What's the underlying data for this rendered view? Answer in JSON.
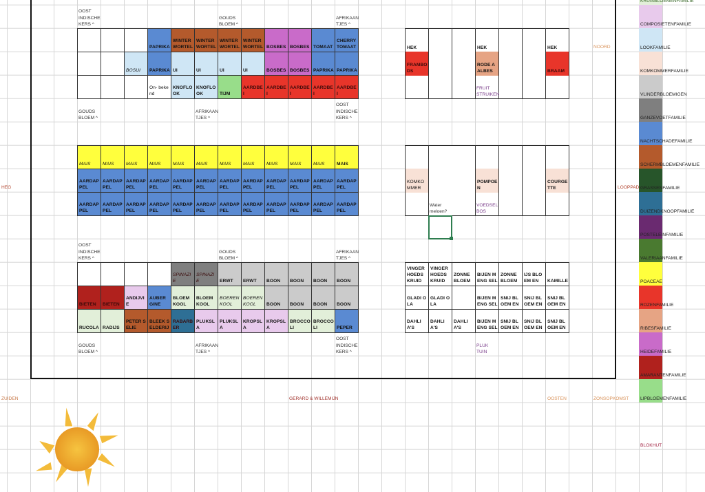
{
  "families": {
    "kruis": {
      "label": "KRUISBLOEMENFAMILIE",
      "color": "#e2efd9"
    },
    "comp": {
      "label": "COMPOSIETENFAMILIE",
      "color": "#e8caec"
    },
    "look": {
      "label": "LOOKFAMILIE",
      "color": "#cfe6f5"
    },
    "komk": {
      "label": "KOMKOMMERFAMILIE",
      "color": "#f8e1d6"
    },
    "vlin": {
      "label": "VLINDERBLOEMIGEN",
      "color": "#cbcbcb"
    },
    "ganz": {
      "label": "GANZEVOETFAMILIE",
      "color": "#7f7f7f"
    },
    "nacht": {
      "label": "NACHTSCHADEFAMILIE",
      "color": "#5a8ad2"
    },
    "scherm": {
      "label": "SCHERMBLOEMENFAMILIE",
      "color": "#b45a2c"
    },
    "gras": {
      "label": "GRASSENFAMILIE",
      "color": "#27552a"
    },
    "duiz": {
      "label": "DUIZENDKNOOPFAMILIE",
      "color": "#2e6f95"
    },
    "post": {
      "label": "POSTELEINFAMILIE",
      "color": "#6a2a70"
    },
    "val": {
      "label": "VALERIAANFAMILIE",
      "color": "#4a7a30"
    },
    "poa": {
      "label": "POACEAE",
      "color": "#ffff3d"
    },
    "roz": {
      "label": "ROZENFAMILIE",
      "color": "#e8352a"
    },
    "ribes": {
      "label": "RIBESFAMILIE",
      "color": "#e6a484"
    },
    "heide": {
      "label": "HEIDEFAMILIE",
      "color": "#c96bc9"
    },
    "amar": {
      "label": "AMARANTENFAMILIE",
      "color": "#b0211d"
    },
    "lip": {
      "label": "LIPBLOEMENFAMILIE",
      "color": "#98dd8a"
    }
  },
  "legend_order": [
    "kruis",
    "comp",
    "look",
    "komk",
    "vlin",
    "ganz",
    "nacht",
    "scherm",
    "gras",
    "duiz",
    "post",
    "val",
    "poa",
    "roz",
    "ribes",
    "heide",
    "amar",
    "lip"
  ],
  "plots": [
    {
      "name": "bed-top-left",
      "rows": [
        [
          [
            "",
            ""
          ],
          [
            "",
            ""
          ],
          [
            "",
            ""
          ],
          [
            "PAPRIKA",
            "nacht"
          ],
          [
            "WINTER WORTEL",
            "scherm"
          ],
          [
            "WINTER WORTEL",
            "scherm"
          ],
          [
            "WINTER WORTEL",
            "scherm"
          ],
          [
            "WINTER WORTEL",
            "scherm"
          ],
          [
            "BOSBES",
            "heide"
          ],
          [
            "BOSBES",
            "heide"
          ],
          [
            "TOMAAT",
            "nacht"
          ],
          [
            "CHERRY TOMAAT",
            "nacht"
          ]
        ],
        [
          [
            "",
            ""
          ],
          [
            "",
            ""
          ],
          [
            "BOSUI",
            "look",
            "i"
          ],
          [
            "PAPRIKA",
            "nacht"
          ],
          [
            "UI",
            "look"
          ],
          [
            "UI",
            "look"
          ],
          [
            "UI",
            "look"
          ],
          [
            "UI",
            "look"
          ],
          [
            "BOSBES",
            "heide"
          ],
          [
            "BOSBES",
            "heide"
          ],
          [
            "PAPRIKA",
            "nacht"
          ],
          [
            "PAPRIKA",
            "nacht"
          ]
        ],
        [
          [
            "",
            ""
          ],
          [
            "",
            ""
          ],
          [
            "",
            ""
          ],
          [
            "On- bekend",
            "",
            "n"
          ],
          [
            "KNOFLOOK",
            "look"
          ],
          [
            "KNOFLOOK",
            "look"
          ],
          [
            "TIJM",
            "lip"
          ],
          [
            "AARDBEI",
            "roz"
          ],
          [
            "AARDBEI",
            "roz"
          ],
          [
            "AARDBEI",
            "roz"
          ],
          [
            "AARDBEI",
            "roz"
          ],
          [
            "AARDBEI",
            "roz"
          ]
        ]
      ]
    },
    {
      "name": "bed-middle-left",
      "rows": [
        [
          [
            "MAIS",
            "poa",
            "i"
          ],
          [
            "MAIS",
            "poa",
            "i"
          ],
          [
            "MAIS",
            "poa",
            "i"
          ],
          [
            "MAIS",
            "poa",
            "i"
          ],
          [
            "MAIS",
            "poa",
            "i"
          ],
          [
            "MAIS",
            "poa",
            "i"
          ],
          [
            "MAIS",
            "poa",
            "i"
          ],
          [
            "MAIS",
            "poa",
            "i"
          ],
          [
            "MAIS",
            "poa",
            "i"
          ],
          [
            "MAIS",
            "poa",
            "i"
          ],
          [
            "MAIS",
            "poa",
            "i"
          ],
          [
            "MAIS",
            "poa"
          ]
        ],
        [
          [
            "AARDAPPEL",
            "nacht"
          ],
          [
            "AARDAPPEL",
            "nacht"
          ],
          [
            "AARDAPPEL",
            "nacht"
          ],
          [
            "AARDAPPEL",
            "nacht"
          ],
          [
            "AARDAPPEL",
            "nacht"
          ],
          [
            "AARDAPPEL",
            "nacht"
          ],
          [
            "AARDAPPEL",
            "nacht"
          ],
          [
            "AARDAPPEL",
            "nacht"
          ],
          [
            "AARDAPPEL",
            "nacht"
          ],
          [
            "AARDAPPEL",
            "nacht"
          ],
          [
            "AARDAPPEL",
            "nacht"
          ],
          [
            "AARDAPPEL",
            "nacht"
          ]
        ],
        [
          [
            "AARDAPPEL",
            "nacht"
          ],
          [
            "AARDAPPEL",
            "nacht"
          ],
          [
            "AARDAPPEL",
            "nacht"
          ],
          [
            "AARDAPPEL",
            "nacht"
          ],
          [
            "AARDAPPEL",
            "nacht"
          ],
          [
            "AARDAPPEL",
            "nacht"
          ],
          [
            "AARDAPPEL",
            "nacht"
          ],
          [
            "AARDAPPEL",
            "nacht"
          ],
          [
            "AARDAPPEL",
            "nacht"
          ],
          [
            "AARDAPPEL",
            "nacht"
          ],
          [
            "AARDAPPEL",
            "nacht"
          ],
          [
            "AARDAPPEL",
            "nacht"
          ]
        ]
      ]
    },
    {
      "name": "bed-bottom-left",
      "rows": [
        [
          [
            "",
            ""
          ],
          [
            "",
            ""
          ],
          [
            "",
            ""
          ],
          [
            "",
            ""
          ],
          [
            "SPINAZIE",
            "ganz",
            "i"
          ],
          [
            "SPINAZIE",
            "ganz",
            "i"
          ],
          [
            "ERWT",
            "vlin"
          ],
          [
            "ERWT",
            "vlin"
          ],
          [
            "BOON",
            "vlin"
          ],
          [
            "BOON",
            "vlin"
          ],
          [
            "BOON",
            "vlin"
          ],
          [
            "BOON",
            "vlin"
          ]
        ],
        [
          [
            "BIETEN",
            "amar"
          ],
          [
            "BIETEN",
            "amar"
          ],
          [
            "ANDIJVIE",
            "comp"
          ],
          [
            "AUBER GINE",
            "nacht"
          ],
          [
            "BLOEM KOOL",
            "kruis"
          ],
          [
            "BLOEM KOOL",
            "kruis"
          ],
          [
            "BOEREN KOOL",
            "kruis",
            "i"
          ],
          [
            "BOEREN KOOL",
            "kruis",
            "i"
          ],
          [
            "BOON",
            "vlin"
          ],
          [
            "BOON",
            "vlin"
          ],
          [
            "BOON",
            "vlin"
          ],
          [
            "BOON",
            "vlin"
          ]
        ],
        [
          [
            "RUCOLA",
            "kruis"
          ],
          [
            "RADIJS",
            "kruis"
          ],
          [
            "PETER SELIE",
            "scherm"
          ],
          [
            "BLEEK SELDERIJ",
            "scherm"
          ],
          [
            "RABARBER",
            "duiz"
          ],
          [
            "PLUKSLA",
            "comp"
          ],
          [
            "PLUKSLA",
            "comp"
          ],
          [
            "KROPSLA",
            "comp"
          ],
          [
            "KROPSLA",
            "comp"
          ],
          [
            "BROCCOLI",
            "kruis"
          ],
          [
            "BROCCOLI",
            "kruis"
          ],
          [
            "PEPER",
            "nacht"
          ]
        ]
      ]
    },
    {
      "name": "bed-fruit",
      "rows": [
        [
          [
            "HEK",
            ""
          ],
          [
            "",
            ""
          ],
          [
            "",
            ""
          ],
          [
            "HEK",
            ""
          ],
          [
            "",
            ""
          ],
          [
            "",
            ""
          ],
          [
            "HEK",
            ""
          ]
        ],
        [
          [
            "FRAMBODS",
            "roz"
          ],
          [
            "",
            ""
          ],
          [
            "",
            ""
          ],
          [
            "RODE AALBES",
            "ribes"
          ],
          [
            "",
            ""
          ],
          [
            "",
            ""
          ],
          [
            "BRAAM",
            "roz"
          ]
        ],
        [
          [
            "",
            ""
          ],
          [
            "",
            ""
          ],
          [
            "",
            ""
          ],
          [
            "",
            ""
          ],
          [
            "",
            ""
          ],
          [
            "",
            ""
          ],
          [
            "",
            ""
          ]
        ]
      ]
    },
    {
      "name": "bed-food-forest",
      "rows": [
        [
          [
            "",
            ""
          ],
          [
            "",
            ""
          ],
          [
            "",
            ""
          ],
          [
            "",
            ""
          ],
          [
            "",
            ""
          ],
          [
            "",
            ""
          ],
          [
            "",
            ""
          ]
        ],
        [
          [
            "KOMKOMMER",
            "komk",
            "n"
          ],
          [
            "",
            ""
          ],
          [
            "",
            ""
          ],
          [
            "POMPOEN",
            "komk"
          ],
          [
            "",
            ""
          ],
          [
            "",
            ""
          ],
          [
            "COURGETTE",
            "komk"
          ]
        ],
        [
          [
            "",
            ""
          ],
          [
            "",
            ""
          ],
          [
            "",
            ""
          ],
          [
            "",
            ""
          ],
          [
            "",
            ""
          ],
          [
            "",
            ""
          ],
          [
            "",
            ""
          ]
        ]
      ]
    },
    {
      "name": "bed-pluktuin",
      "rows": [
        [
          [
            "VINGER HOEDS KRUID",
            ""
          ],
          [
            "VINGER HOEDS KRUID",
            ""
          ],
          [
            "ZONNE BLOEM",
            ""
          ],
          [
            "BIJEN MENG SEL",
            ""
          ],
          [
            "ZONNE BLOEM",
            ""
          ],
          [
            "IJS BLOEM EN",
            ""
          ],
          [
            "KAMILLE",
            ""
          ]
        ],
        [
          [
            "GLADI OLA",
            ""
          ],
          [
            "GLADI OLA",
            ""
          ],
          [
            "",
            ""
          ],
          [
            "BIJEN MENG SEL",
            ""
          ],
          [
            "SNIJ BLOEM EN",
            ""
          ],
          [
            "SNIJ BLOEM EN",
            ""
          ],
          [
            "SNIJ BLOEM EN",
            ""
          ]
        ],
        [
          [
            "DAHLIA'S",
            ""
          ],
          [
            "DAHLIA'S",
            ""
          ],
          [
            "DAHLIA'S",
            ""
          ],
          [
            "BIJEN MENG SEL",
            ""
          ],
          [
            "SNIJ BLOEM EN",
            ""
          ],
          [
            "SNIJ BLOEM EN",
            ""
          ],
          [
            "SNIJ BLOEM EN",
            ""
          ]
        ]
      ]
    }
  ],
  "notes": [
    {
      "text": "OOST INDISCHE KERS ^",
      "c": 3,
      "r": 0
    },
    {
      "text": "GOUDS BLOEM ^",
      "c": 9,
      "r": 0
    },
    {
      "text": "AFRIKAAN TJES ^",
      "c": 14,
      "r": 0
    },
    {
      "text": "GOUDS BLOEM ^",
      "c": 3,
      "r": 4
    },
    {
      "text": "AFRIKAAN TJES ^",
      "c": 8,
      "r": 4
    },
    {
      "text": "OOST INDISCHE KERS ^",
      "c": 14,
      "r": 4
    },
    {
      "text": "OOST INDISCHE KERS ^",
      "c": 3,
      "r": 10
    },
    {
      "text": "GOUDS BLOEM ^",
      "c": 9,
      "r": 10
    },
    {
      "text": "AFRIKAAN TJES ^",
      "c": 14,
      "r": 10
    },
    {
      "text": "GOUDS BLOEM ^",
      "c": 3,
      "r": 14
    },
    {
      "text": "AFRIKAAN TJES ^",
      "c": 8,
      "r": 14
    },
    {
      "text": "OOST INDISCHE KERS ^",
      "c": 14,
      "r": 14
    },
    {
      "text": "FRUIT STRUIKEN",
      "c": 20,
      "r": 3,
      "color": "#7a3d8a"
    },
    {
      "text": "Water meloen?",
      "c": 18,
      "r": 8
    },
    {
      "text": "VOEDSEL BOS",
      "c": 20,
      "r": 8,
      "color": "#7a3d8a"
    },
    {
      "text": "PLUK TUIN",
      "c": 20,
      "r": 14,
      "color": "#7a3d8a"
    }
  ],
  "directions": {
    "noord": {
      "text": "NOORD",
      "color": "#d9925a"
    },
    "looppad": {
      "text": "LOOPPAD",
      "color": "#b0402a"
    },
    "heg": {
      "text": "HEG",
      "color": "#b0402a"
    },
    "zuiden": {
      "text": "ZUIDEN",
      "color": "#c87a4a"
    },
    "gerard": {
      "text": "GERARD & WILLEMIJN",
      "color": "#a0302a"
    },
    "oosten": {
      "text": "OOSTEN",
      "color": "#d9925a"
    },
    "zonsopkomst": {
      "text": "ZONSOPKOMST",
      "color": "#d9925a"
    },
    "blokhut": {
      "text": "BLOKHUT",
      "color": "#a02040"
    }
  }
}
